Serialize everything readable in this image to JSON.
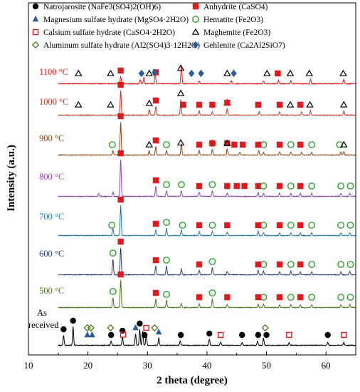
{
  "chart_data": {
    "type": "line",
    "title": "",
    "xlabel": "2 theta (degree)",
    "ylabel": "Intensity (a.u.)",
    "xlim": [
      10,
      65
    ],
    "xticks": [
      10,
      20,
      30,
      40,
      50,
      60
    ],
    "yticks_shown": false,
    "grid": false,
    "legend": {
      "placement": "top",
      "entries": [
        {
          "key": "natrojarosite",
          "marker": "circle-filled",
          "color": "#000000",
          "label": "Natrojarosite (NaFe3(SO4)2(OH)6)"
        },
        {
          "key": "magnesium_sulfate_hydrate",
          "marker": "triangle-filled",
          "color": "#2a5c99",
          "label": "Magnesium sulfate hydrate (MgSO4·2H2O)"
        },
        {
          "key": "calcium_sulfate_hydrate",
          "marker": "square-open",
          "color": "#e31a1c",
          "label": "Calsium sulfate hydrate (CaSO4·2H2O)"
        },
        {
          "key": "aluminum_sulfate_hydrate",
          "marker": "diamond-open",
          "color": "#4a7a1f",
          "label": "Aluminum sulfate hydrate (Al2(SO4)3·12H2O)"
        },
        {
          "key": "anhydrite",
          "marker": "square-filled",
          "color": "#e31a1c",
          "label": "Anhydrite (CaSO4)"
        },
        {
          "key": "hematite",
          "marker": "circle-open",
          "color": "#2ca02c",
          "label": "Hematite (Fe2O3)"
        },
        {
          "key": "maghemite",
          "marker": "triangle-open",
          "color": "#000000",
          "label": "Maghemite (Fe2O3)"
        },
        {
          "key": "gehlenite",
          "marker": "diamond-filled",
          "color": "#2a5c99",
          "label": "Gehlenite (Ca2Al2SiO7)"
        }
      ]
    },
    "series": [
      {
        "name": "1100 °C",
        "color": "#e31a1c",
        "peaks": [
          [
            25.5,
            0.25
          ],
          [
            28.8,
            0.15
          ],
          [
            29.4,
            0.22
          ],
          [
            31.3,
            0.35
          ],
          [
            35.7,
            0.62
          ],
          [
            38.7,
            0.1
          ],
          [
            44.1,
            0.1
          ],
          [
            49.5,
            0.1
          ],
          [
            52.0,
            0.12
          ],
          [
            54.1,
            0.1
          ],
          [
            57.4,
            0.15
          ],
          [
            63.0,
            0.15
          ]
        ],
        "markers": [
          {
            "type": "maghemite",
            "x": [
              18.4,
              23.8,
              30.3,
              35.6,
              43.4,
              50.1,
              54.0,
              57.2,
              62.9
            ]
          },
          {
            "type": "anhydrite",
            "x": [
              25.5,
              31.4,
              51.9
            ]
          },
          {
            "type": "gehlenite",
            "x": [
              29.0,
              31.2,
              37.4,
              39.0,
              44.5
            ]
          }
        ]
      },
      {
        "name": "1000 °C",
        "color": "#c0392b",
        "peaks": [
          [
            25.5,
            0.85
          ],
          [
            30.3,
            0.2
          ],
          [
            31.4,
            0.3
          ],
          [
            35.6,
            0.55
          ],
          [
            38.7,
            0.15
          ],
          [
            40.9,
            0.12
          ],
          [
            43.4,
            0.22
          ],
          [
            48.8,
            0.12
          ],
          [
            52.2,
            0.12
          ],
          [
            55.9,
            0.12
          ],
          [
            57.4,
            0.15
          ],
          [
            63.0,
            0.15
          ]
        ],
        "markers": [
          {
            "type": "maghemite",
            "x": [
              18.4,
              23.8,
              30.3,
              35.6,
              43.4,
              54.0,
              57.3,
              63.0
            ]
          },
          {
            "type": "anhydrite",
            "x": [
              25.5,
              31.4,
              36.0,
              38.7,
              40.9,
              43.4,
              48.6,
              52.2,
              55.7
            ]
          }
        ]
      },
      {
        "name": "900 °C",
        "color": "#8b4513",
        "peaks": [
          [
            24.2,
            0.15
          ],
          [
            25.5,
            1.15
          ],
          [
            30.3,
            0.15
          ],
          [
            31.4,
            0.3
          ],
          [
            33.2,
            0.15
          ],
          [
            35.7,
            0.4
          ],
          [
            38.7,
            0.15
          ],
          [
            40.9,
            0.2
          ],
          [
            43.4,
            0.2
          ],
          [
            45.5,
            0.1
          ],
          [
            48.7,
            0.15
          ],
          [
            49.5,
            0.1
          ],
          [
            52.2,
            0.12
          ],
          [
            54.1,
            0.1
          ],
          [
            55.9,
            0.1
          ],
          [
            57.6,
            0.1
          ],
          [
            62.5,
            0.1
          ],
          [
            63.0,
            0.12
          ]
        ],
        "markers": [
          {
            "type": "hematite",
            "x": [
              24.1,
              33.2,
              40.9,
              49.5,
              54.1,
              57.6,
              62.3
            ]
          },
          {
            "type": "anhydrite",
            "x": [
              25.5,
              31.4,
              38.7,
              40.9,
              43.4,
              44.6,
              46.0,
              48.6,
              52.2,
              55.7
            ]
          },
          {
            "type": "maghemite",
            "x": [
              30.3,
              35.6,
              43.4,
              63.0
            ]
          }
        ]
      },
      {
        "name": "800 °C",
        "color": "#8e44ad",
        "peaks": [
          [
            21.8,
            0.1
          ],
          [
            24.2,
            0.15
          ],
          [
            25.5,
            1.3
          ],
          [
            31.4,
            0.35
          ],
          [
            33.2,
            0.2
          ],
          [
            35.7,
            0.2
          ],
          [
            38.7,
            0.15
          ],
          [
            40.9,
            0.2
          ],
          [
            43.4,
            0.12
          ],
          [
            48.6,
            0.15
          ],
          [
            49.5,
            0.1
          ],
          [
            52.2,
            0.12
          ],
          [
            54.1,
            0.1
          ],
          [
            55.7,
            0.1
          ],
          [
            57.6,
            0.1
          ],
          [
            62.5,
            0.1
          ],
          [
            64.0,
            0.1
          ]
        ],
        "markers": [
          {
            "type": "anhydrite",
            "x": [
              25.5,
              31.4,
              38.7,
              43.4,
              45.0,
              46.3,
              48.6,
              52.2,
              55.7
            ]
          },
          {
            "type": "hematite",
            "x": [
              33.2,
              35.7,
              40.9,
              49.5,
              54.1,
              57.6,
              62.5,
              64.1
            ]
          }
        ]
      },
      {
        "name": "700 °C",
        "color": "#1f77b4",
        "peaks": [
          [
            24.2,
            0.25
          ],
          [
            25.5,
            1.05
          ],
          [
            31.4,
            0.2
          ],
          [
            33.2,
            0.25
          ],
          [
            35.7,
            0.2
          ],
          [
            38.7,
            0.15
          ],
          [
            40.9,
            0.15
          ],
          [
            43.4,
            0.12
          ],
          [
            48.6,
            0.15
          ],
          [
            49.5,
            0.1
          ],
          [
            52.2,
            0.1
          ],
          [
            54.1,
            0.1
          ],
          [
            55.7,
            0.1
          ],
          [
            57.6,
            0.1
          ],
          [
            62.5,
            0.1
          ],
          [
            64.0,
            0.1
          ]
        ],
        "markers": [
          {
            "type": "hematite",
            "x": [
              24.0,
              33.2,
              35.9,
              40.9,
              49.5,
              54.1,
              57.6,
              62.5,
              64.1
            ]
          },
          {
            "type": "anhydrite",
            "x": [
              25.5,
              31.4,
              38.7,
              43.4,
              48.6,
              52.2,
              55.7
            ]
          }
        ]
      },
      {
        "name": "600 °C",
        "color": "#2c3e7a",
        "peaks": [
          [
            24.2,
            0.55
          ],
          [
            25.5,
            0.95
          ],
          [
            31.4,
            0.3
          ],
          [
            33.2,
            0.3
          ],
          [
            35.7,
            0.2
          ],
          [
            38.7,
            0.15
          ],
          [
            40.9,
            0.25
          ],
          [
            43.4,
            0.12
          ],
          [
            48.6,
            0.15
          ],
          [
            49.5,
            0.12
          ],
          [
            52.2,
            0.1
          ],
          [
            54.1,
            0.12
          ],
          [
            55.7,
            0.1
          ],
          [
            57.6,
            0.1
          ],
          [
            62.5,
            0.1
          ],
          [
            64.0,
            0.12
          ]
        ],
        "markers": [
          {
            "type": "hematite",
            "x": [
              24.2,
              33.2,
              40.9,
              49.5,
              54.1,
              57.6,
              62.5,
              64.1
            ]
          },
          {
            "type": "anhydrite",
            "x": [
              25.5,
              31.4,
              38.7,
              48.6,
              52.2,
              55.7
            ]
          }
        ]
      },
      {
        "name": "500 °C",
        "color": "#4a7a1f",
        "peaks": [
          [
            24.2,
            0.35
          ],
          [
            25.5,
            0.95
          ],
          [
            31.4,
            0.3
          ],
          [
            33.2,
            0.25
          ],
          [
            35.7,
            0.15
          ],
          [
            38.7,
            0.12
          ],
          [
            40.9,
            0.3
          ],
          [
            43.4,
            0.1
          ],
          [
            48.6,
            0.12
          ],
          [
            49.5,
            0.12
          ],
          [
            52.2,
            0.1
          ],
          [
            54.1,
            0.1
          ],
          [
            55.7,
            0.1
          ],
          [
            57.6,
            0.1
          ],
          [
            62.5,
            0.1
          ],
          [
            64.0,
            0.12
          ]
        ],
        "markers": [
          {
            "type": "hematite",
            "x": [
              24.2,
              33.2,
              40.9,
              49.5,
              54.1,
              57.6,
              62.5,
              64.1
            ]
          },
          {
            "type": "anhydrite",
            "x": [
              25.5,
              31.4,
              38.7,
              43.4,
              48.6,
              52.2,
              55.7
            ]
          }
        ]
      },
      {
        "name": "As received",
        "color": "#000000",
        "peaks": [
          [
            15.9,
            0.35
          ],
          [
            17.5,
            0.65
          ],
          [
            23.9,
            0.15
          ],
          [
            25.8,
            0.3
          ],
          [
            28.0,
            0.4
          ],
          [
            28.7,
            0.55
          ],
          [
            29.2,
            0.5
          ],
          [
            29.8,
            0.4
          ],
          [
            31.9,
            0.25
          ],
          [
            35.5,
            0.15
          ],
          [
            40.4,
            0.2
          ],
          [
            42.3,
            0.12
          ],
          [
            45.9,
            0.1
          ],
          [
            48.5,
            0.15
          ],
          [
            49.5,
            0.25
          ],
          [
            53.8,
            0.1
          ],
          [
            60.3,
            0.1
          ],
          [
            63.0,
            0.1
          ]
        ],
        "markers": [
          {
            "type": "natrojarosite",
            "x": [
              15.9,
              17.5,
              23.9,
              25.8,
              28.7,
              29.5,
              35.6,
              40.4,
              45.9,
              48.6,
              50.0,
              60.3
            ]
          },
          {
            "type": "magnesium_sulfate_hydrate",
            "x": [
              19.9,
              20.7,
              28.0,
              31.9
            ]
          },
          {
            "type": "aluminum_sulfate_hydrate",
            "x": [
              19.9,
              20.5,
              23.8,
              31.2,
              49.8
            ]
          },
          {
            "type": "calcium_sulfate_hydrate",
            "x": [
              25.9,
              29.8,
              42.3,
              53.8,
              63.0
            ]
          }
        ]
      }
    ]
  }
}
